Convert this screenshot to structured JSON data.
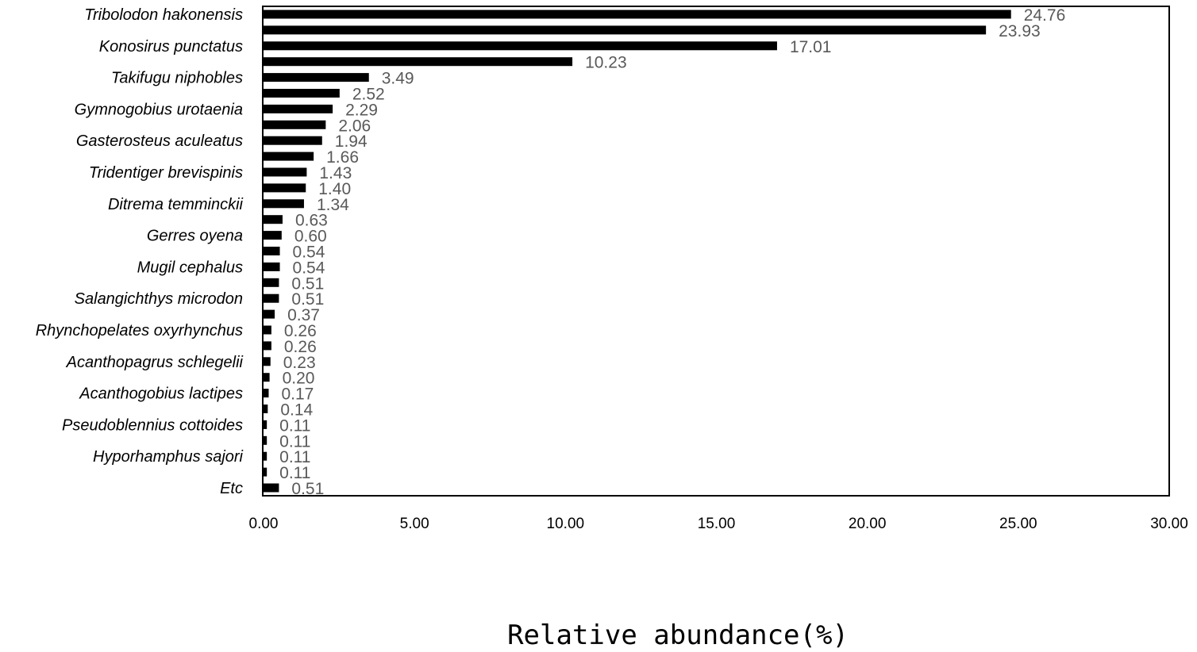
{
  "chart_data": {
    "type": "bar",
    "orientation": "horizontal",
    "categories": [
      "Tribolodon hakonensis",
      "",
      "Konosirus punctatus",
      "",
      "Takifugu niphobles",
      "",
      "Gymnogobius urotaenia",
      "",
      "Gasterosteus aculeatus",
      "",
      "Tridentiger brevispinis",
      "",
      "Ditrema temminckii",
      "",
      "Gerres oyena",
      "",
      "Mugil cephalus",
      "",
      "Salangichthys microdon",
      "",
      "Rhynchopelates oxyrhynchus",
      "",
      "Acanthopagrus schlegelii",
      "",
      "Acanthogobius lactipes",
      "",
      "Pseudoblennius cottoides",
      "",
      "Hyporhamphus sajori",
      "",
      "Etc"
    ],
    "values": [
      24.76,
      23.93,
      17.01,
      10.23,
      3.49,
      2.52,
      2.29,
      2.06,
      1.94,
      1.66,
      1.43,
      1.4,
      1.34,
      0.63,
      0.6,
      0.54,
      0.54,
      0.51,
      0.51,
      0.37,
      0.26,
      0.26,
      0.23,
      0.2,
      0.17,
      0.14,
      0.11,
      0.11,
      0.11,
      0.11,
      0.51
    ],
    "value_labels": [
      "24.76",
      "23.93",
      "17.01",
      "10.23",
      "3.49",
      "2.52",
      "2.29",
      "2.06",
      "1.94",
      "1.66",
      "1.43",
      "1.40",
      "1.34",
      "0.63",
      "0.60",
      "0.54",
      "0.54",
      "0.51",
      "0.51",
      "0.37",
      "0.26",
      "0.26",
      "0.23",
      "0.20",
      "0.17",
      "0.14",
      "0.11",
      "0.11",
      "0.11",
      "0.11",
      "0.51"
    ],
    "xlabel": "Relative abundance(%)",
    "ylabel": "",
    "title": "",
    "xlim": [
      0,
      30
    ],
    "xticks": [
      0,
      5,
      10,
      15,
      20,
      25,
      30
    ],
    "xtick_labels": [
      "0.00",
      "5.00",
      "10.00",
      "15.00",
      "20.00",
      "25.00",
      "30.00"
    ],
    "grid": false,
    "legend": "none",
    "bar_color": "#000000",
    "value_label_color": "#595959"
  }
}
